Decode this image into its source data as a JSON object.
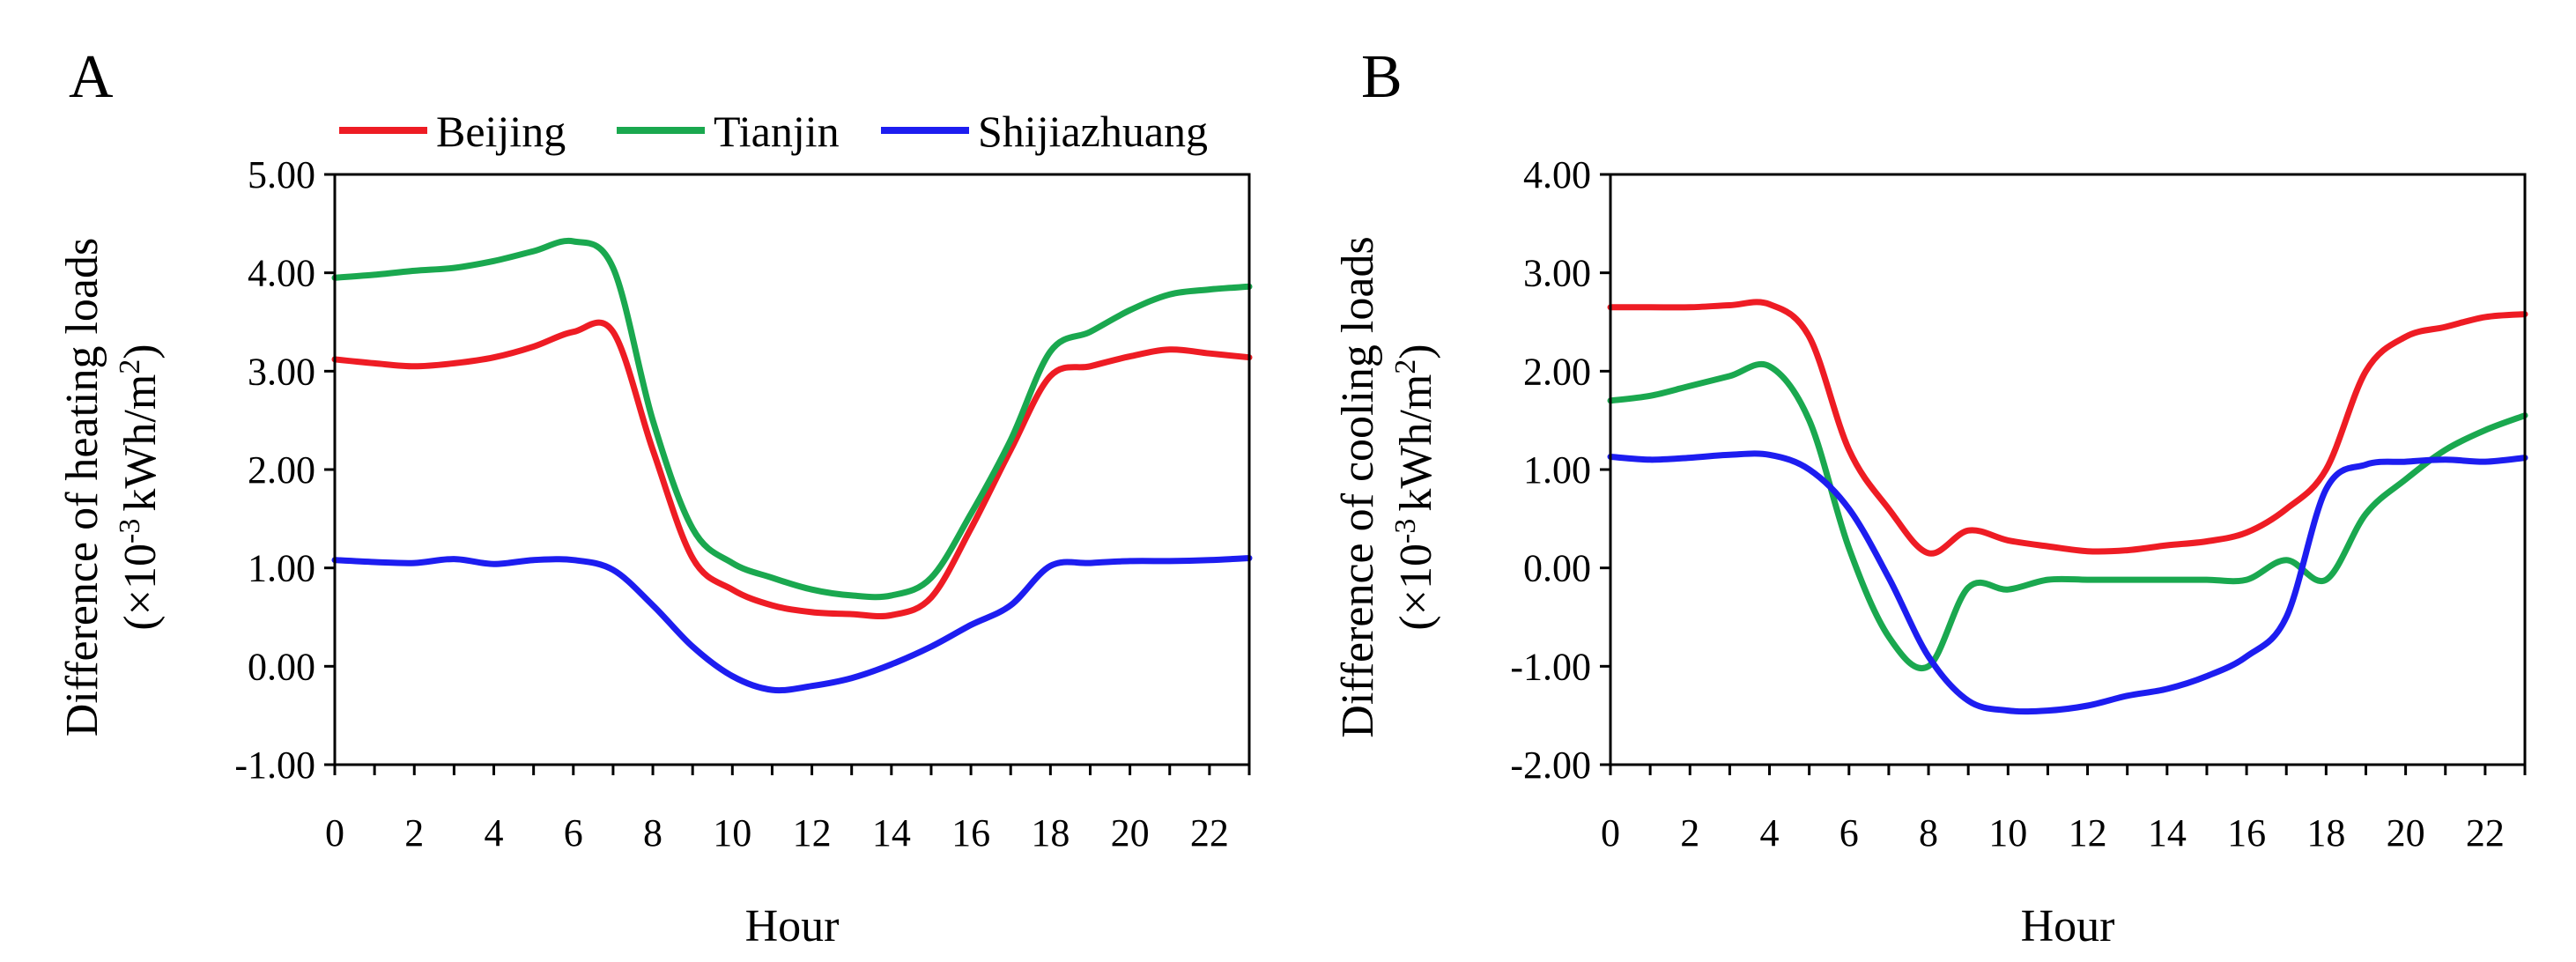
{
  "legend": [
    "Beijing",
    "Tianjin",
    "Shijiazhuang"
  ],
  "colors": {
    "Beijing": "#ee1c24",
    "Tianjin": "#1aa84f",
    "Shijiazhuang": "#1d1df0"
  },
  "chart_data": [
    {
      "panel": "A",
      "type": "line",
      "title": "",
      "xlabel": "Hour",
      "ylabel": "Difference of heating loads",
      "ylabel_unit_prefix": "(×10",
      "ylabel_unit_exp": "-3",
      "ylabel_unit_suffix": "kWh/m",
      "ylabel_unit_sq": "2",
      "ylabel_unit_close": ")",
      "xlim": [
        0,
        23
      ],
      "ylim": [
        -1,
        5
      ],
      "xticks": [
        "0",
        "2",
        "4",
        "6",
        "8",
        "10",
        "12",
        "14",
        "16",
        "18",
        "20",
        "22"
      ],
      "yticks": [
        "-1.00",
        "0.00",
        "1.00",
        "2.00",
        "3.00",
        "4.00",
        "5.00"
      ],
      "x": [
        0,
        1,
        2,
        3,
        4,
        5,
        6,
        7,
        8,
        9,
        10,
        11,
        12,
        13,
        14,
        15,
        16,
        17,
        18,
        19,
        20,
        21,
        22,
        23
      ],
      "series": [
        {
          "name": "Beijing",
          "values": [
            3.12,
            3.08,
            3.05,
            3.08,
            3.14,
            3.25,
            3.4,
            3.4,
            2.2,
            1.1,
            0.78,
            0.62,
            0.55,
            0.53,
            0.52,
            0.7,
            1.4,
            2.2,
            2.95,
            3.05,
            3.15,
            3.22,
            3.18,
            3.14
          ]
        },
        {
          "name": "Tianjin",
          "values": [
            3.95,
            3.98,
            4.02,
            4.05,
            4.12,
            4.22,
            4.32,
            4.05,
            2.5,
            1.4,
            1.05,
            0.9,
            0.78,
            0.72,
            0.72,
            0.9,
            1.55,
            2.3,
            3.2,
            3.4,
            3.62,
            3.78,
            3.83,
            3.86
          ]
        },
        {
          "name": "Shijiazhuang",
          "values": [
            1.08,
            1.06,
            1.05,
            1.09,
            1.04,
            1.08,
            1.08,
            0.98,
            0.62,
            0.2,
            -0.1,
            -0.24,
            -0.2,
            -0.12,
            0.02,
            0.2,
            0.42,
            0.62,
            1.02,
            1.05,
            1.07,
            1.07,
            1.08,
            1.1
          ]
        }
      ]
    },
    {
      "panel": "B",
      "type": "line",
      "title": "",
      "xlabel": "Hour",
      "ylabel": "Difference of cooling loads",
      "ylabel_unit_prefix": "(×10",
      "ylabel_unit_exp": "-3",
      "ylabel_unit_suffix": "kWh/m",
      "ylabel_unit_sq": "2",
      "ylabel_unit_close": ")",
      "xlim": [
        0,
        23
      ],
      "ylim": [
        -2,
        4
      ],
      "xticks": [
        "0",
        "2",
        "4",
        "6",
        "8",
        "10",
        "12",
        "14",
        "16",
        "18",
        "20",
        "22"
      ],
      "yticks": [
        "-2.00",
        "-1.00",
        "0.00",
        "1.00",
        "2.00",
        "3.00",
        "4.00"
      ],
      "x": [
        0,
        1,
        2,
        3,
        4,
        5,
        6,
        7,
        8,
        9,
        10,
        11,
        12,
        13,
        14,
        15,
        16,
        17,
        18,
        19,
        20,
        21,
        22,
        23
      ],
      "series": [
        {
          "name": "Beijing",
          "values": [
            2.65,
            2.65,
            2.65,
            2.67,
            2.68,
            2.35,
            1.2,
            0.6,
            0.15,
            0.38,
            0.28,
            0.22,
            0.17,
            0.18,
            0.23,
            0.27,
            0.36,
            0.6,
            1.0,
            2.0,
            2.35,
            2.45,
            2.55,
            2.58
          ]
        },
        {
          "name": "Tianjin",
          "values": [
            1.7,
            1.75,
            1.85,
            1.95,
            2.05,
            1.5,
            0.2,
            -0.7,
            -1.0,
            -0.2,
            -0.22,
            -0.12,
            -0.12,
            -0.12,
            -0.12,
            -0.12,
            -0.12,
            0.08,
            -0.12,
            0.55,
            0.9,
            1.2,
            1.4,
            1.55
          ]
        },
        {
          "name": "Shijiazhuang",
          "values": [
            1.13,
            1.1,
            1.12,
            1.15,
            1.15,
            1.0,
            0.6,
            -0.1,
            -0.9,
            -1.35,
            -1.45,
            -1.45,
            -1.4,
            -1.3,
            -1.23,
            -1.1,
            -0.9,
            -0.5,
            0.8,
            1.05,
            1.08,
            1.1,
            1.08,
            1.12
          ]
        }
      ]
    }
  ]
}
